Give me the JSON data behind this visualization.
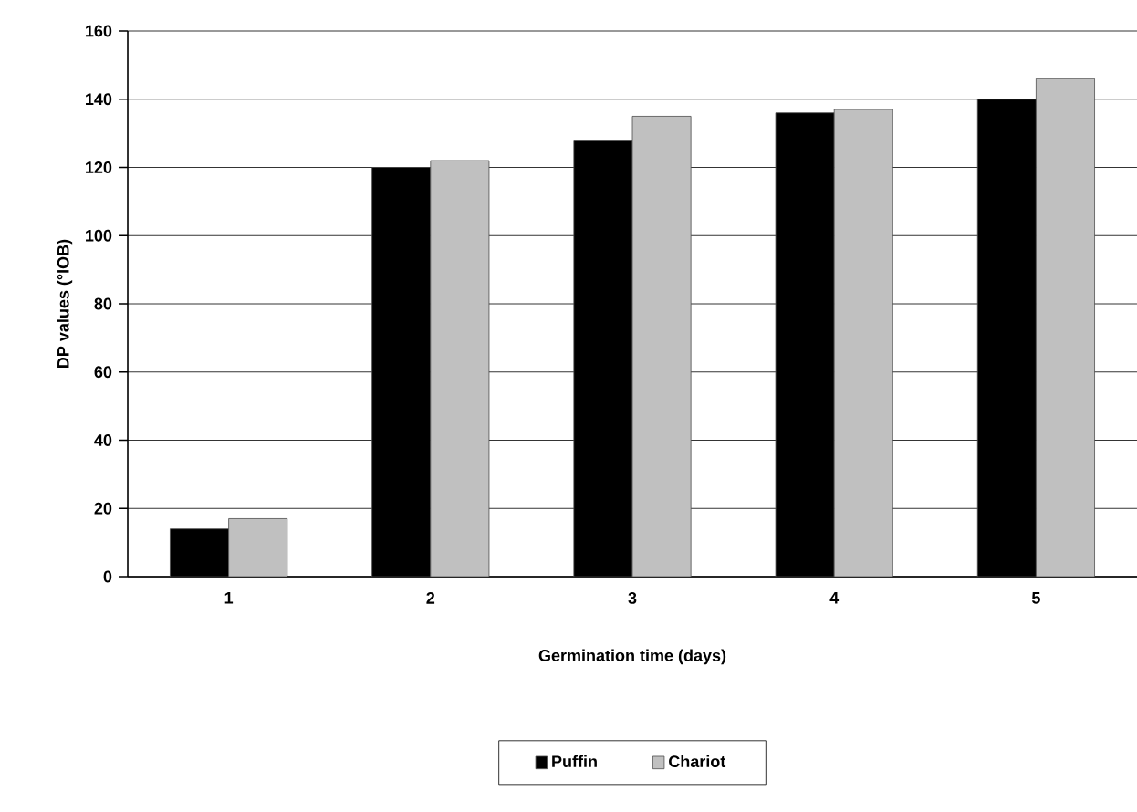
{
  "chart_data": {
    "type": "bar",
    "xlabel": "Germination time (days)",
    "ylabel": "DP values (°IOB)",
    "categories": [
      "1",
      "2",
      "3",
      "4",
      "5"
    ],
    "series": [
      {
        "name": "Puffin",
        "color": "#000000",
        "values": [
          14,
          120,
          128,
          136,
          140
        ]
      },
      {
        "name": "Chariot",
        "color": "#c0c0c0",
        "values": [
          17,
          122,
          135,
          137,
          146
        ]
      }
    ],
    "ylim": [
      0,
      160
    ],
    "yticks": [
      0,
      20,
      40,
      60,
      80,
      100,
      120,
      140,
      160
    ],
    "grid": "y",
    "legend": "bottom"
  }
}
